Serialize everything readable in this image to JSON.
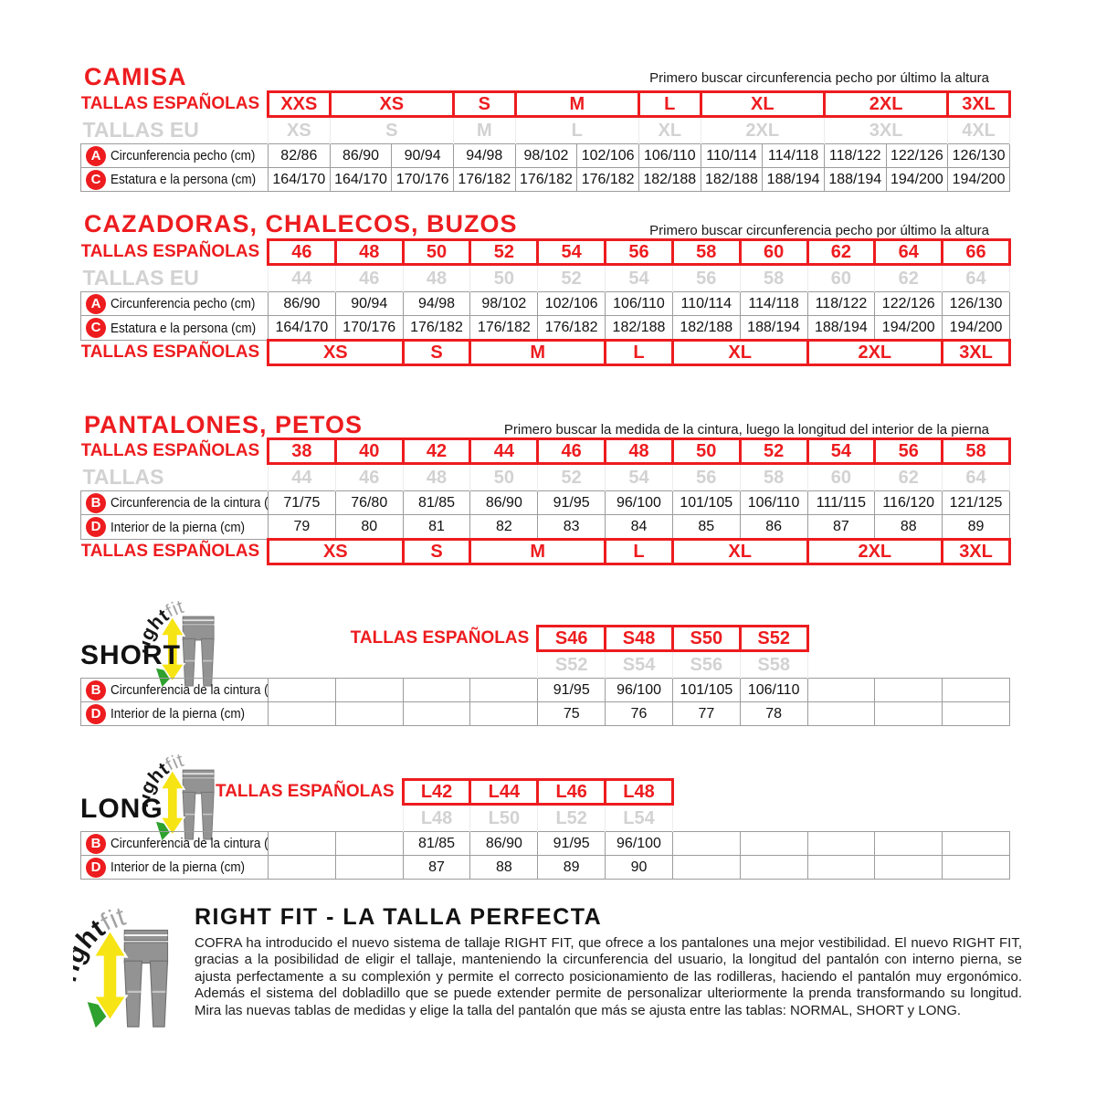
{
  "page": {
    "background": "#ffffff"
  },
  "colors": {
    "accent_red": "#ed1c1f",
    "gray_size_text": "#d2d2d2",
    "table_border_gray": "#9c9c9c",
    "logo_pants_gray": "#939393",
    "logo_arrow_yellow": "#f7e414",
    "logo_arrow_green": "#2ea12e"
  },
  "logo": {
    "right": "right",
    "fit": "fit"
  },
  "tables": {
    "camisa": {
      "title": "CAMISA",
      "note": "Primero buscar circunferencia pecho por último la altura",
      "cols": 12,
      "rows": [
        {
          "type": "red",
          "name": "tallas-espanolas-header",
          "label": "TALLAS ESPAÑOLAS",
          "cells": [
            {
              "t": "XXS"
            },
            {
              "t": "XS",
              "s": 2
            },
            {
              "t": "S"
            },
            {
              "t": "M",
              "s": 2
            },
            {
              "t": "L"
            },
            {
              "t": "XL",
              "s": 2
            },
            {
              "t": "2XL",
              "s": 2
            },
            {
              "t": "3XL"
            }
          ]
        },
        {
          "type": "gray",
          "name": "tallas-eu-header",
          "label": "TALLAS EU",
          "cells": [
            {
              "t": "XS"
            },
            {
              "t": "S",
              "s": 2
            },
            {
              "t": "M"
            },
            {
              "t": "L",
              "s": 2
            },
            {
              "t": "XL"
            },
            {
              "t": "2XL",
              "s": 2
            },
            {
              "t": "3XL",
              "s": 2
            },
            {
              "t": "4XL"
            }
          ]
        },
        {
          "type": "data",
          "name": "row-circunferencia-pecho",
          "badge": "A",
          "label": "Circunferencia pecho (cm)",
          "cells": [
            "82/86",
            "86/90",
            "90/94",
            "94/98",
            "98/102",
            "102/106",
            "106/110",
            "110/114",
            "114/118",
            "118/122",
            "122/126",
            "126/130"
          ]
        },
        {
          "type": "data",
          "name": "row-estatura",
          "badge": "C",
          "label": "Estatura e la persona (cm)",
          "cells": [
            "164/170",
            "164/170",
            "170/176",
            "176/182",
            "176/182",
            "176/182",
            "182/188",
            "182/188",
            "188/194",
            "188/194",
            "194/200",
            "194/200"
          ]
        }
      ]
    },
    "cazadoras": {
      "title": "CAZADORAS, CHALECOS, BUZOS",
      "note": "Primero buscar circunferencia pecho por último la altura",
      "cols": 11,
      "rows": [
        {
          "type": "red",
          "name": "tallas-espanolas-header",
          "label": "TALLAS ESPAÑOLAS",
          "cells": [
            {
              "t": "46"
            },
            {
              "t": "48"
            },
            {
              "t": "50"
            },
            {
              "t": "52"
            },
            {
              "t": "54"
            },
            {
              "t": "56"
            },
            {
              "t": "58"
            },
            {
              "t": "60"
            },
            {
              "t": "62"
            },
            {
              "t": "64"
            },
            {
              "t": "66"
            }
          ]
        },
        {
          "type": "gray",
          "name": "tallas-eu-header",
          "label": "TALLAS EU",
          "cells": [
            {
              "t": "44"
            },
            {
              "t": "46"
            },
            {
              "t": "48"
            },
            {
              "t": "50"
            },
            {
              "t": "52"
            },
            {
              "t": "54"
            },
            {
              "t": "56"
            },
            {
              "t": "58"
            },
            {
              "t": "60"
            },
            {
              "t": "62"
            },
            {
              "t": "64"
            }
          ]
        },
        {
          "type": "data",
          "name": "row-circunferencia-pecho",
          "badge": "A",
          "label": "Circunferencia pecho (cm)",
          "cells": [
            "86/90",
            "90/94",
            "94/98",
            "98/102",
            "102/106",
            "106/110",
            "110/114",
            "114/118",
            "118/122",
            "122/126",
            "126/130"
          ]
        },
        {
          "type": "data",
          "name": "row-estatura",
          "badge": "C",
          "label": "Estatura e la persona (cm)",
          "cells": [
            "164/170",
            "170/176",
            "176/182",
            "176/182",
            "176/182",
            "182/188",
            "182/188",
            "188/194",
            "188/194",
            "194/200",
            "194/200"
          ]
        },
        {
          "type": "red",
          "name": "tallas-espanolas-footer",
          "label": "TALLAS ESPAÑOLAS",
          "cells": [
            {
              "t": "XS",
              "s": 2
            },
            {
              "t": "S"
            },
            {
              "t": "M",
              "s": 2
            },
            {
              "t": "L"
            },
            {
              "t": "XL",
              "s": 2
            },
            {
              "t": "2XL",
              "s": 2
            },
            {
              "t": "3XL"
            }
          ]
        }
      ]
    },
    "pantalones": {
      "title": "PANTALONES, PETOS",
      "note": "Primero buscar la medida de la cintura, luego la longitud del interior de la pierna",
      "cols": 11,
      "rows": [
        {
          "type": "red",
          "name": "tallas-espanolas-header",
          "label": "TALLAS ESPAÑOLAS",
          "cells": [
            {
              "t": "38"
            },
            {
              "t": "40"
            },
            {
              "t": "42"
            },
            {
              "t": "44"
            },
            {
              "t": "46"
            },
            {
              "t": "48"
            },
            {
              "t": "50"
            },
            {
              "t": "52"
            },
            {
              "t": "54"
            },
            {
              "t": "56"
            },
            {
              "t": "58"
            }
          ]
        },
        {
          "type": "gray",
          "name": "tallas-header",
          "label": "TALLAS",
          "cells": [
            {
              "t": "44"
            },
            {
              "t": "46"
            },
            {
              "t": "48"
            },
            {
              "t": "50"
            },
            {
              "t": "52"
            },
            {
              "t": "54"
            },
            {
              "t": "56"
            },
            {
              "t": "58"
            },
            {
              "t": "60"
            },
            {
              "t": "62"
            },
            {
              "t": "64"
            }
          ]
        },
        {
          "type": "data",
          "name": "row-circunferencia-cintura",
          "badge": "B",
          "label": "Circunferencia de la cintura (cm)",
          "cells": [
            "71/75",
            "76/80",
            "81/85",
            "86/90",
            "91/95",
            "96/100",
            "101/105",
            "106/110",
            "111/115",
            "116/120",
            "121/125"
          ]
        },
        {
          "type": "data",
          "name": "row-interior-pierna",
          "badge": "D",
          "label": "Interior de la pierna (cm)",
          "cells": [
            "79",
            "80",
            "81",
            "82",
            "83",
            "84",
            "85",
            "86",
            "87",
            "88",
            "89"
          ]
        },
        {
          "type": "red",
          "name": "tallas-espanolas-footer",
          "label": "TALLAS ESPAÑOLAS",
          "cells": [
            {
              "t": "XS",
              "s": 2
            },
            {
              "t": "S"
            },
            {
              "t": "M",
              "s": 2
            },
            {
              "t": "L"
            },
            {
              "t": "XL",
              "s": 2
            },
            {
              "t": "2XL",
              "s": 2
            },
            {
              "t": "3XL"
            }
          ]
        }
      ]
    },
    "short": {
      "side_label": "SHORT",
      "cols": 11,
      "rows": [
        {
          "type": "red",
          "name": "tallas-espanolas-header",
          "label": "TALLAS ESPAÑOLAS",
          "lead": 4,
          "trail": 3,
          "cells": [
            {
              "t": "S46"
            },
            {
              "t": "S48"
            },
            {
              "t": "S50"
            },
            {
              "t": "S52"
            }
          ]
        },
        {
          "type": "gray",
          "name": "tallas-sub-header",
          "label": "",
          "lead": 4,
          "trail": 3,
          "cells": [
            {
              "t": "S52"
            },
            {
              "t": "S54"
            },
            {
              "t": "S56"
            },
            {
              "t": "S58"
            }
          ]
        },
        {
          "type": "data",
          "name": "row-circunferencia-cintura",
          "badge": "B",
          "label": "Circunferencia de la cintura (cm)",
          "cells": [
            "",
            "",
            "",
            "",
            "91/95",
            "96/100",
            "101/105",
            "106/110",
            "",
            "",
            ""
          ]
        },
        {
          "type": "data",
          "name": "row-interior-pierna",
          "badge": "D",
          "label": "Interior de la pierna (cm)",
          "cells": [
            "",
            "",
            "",
            "",
            "75",
            "76",
            "77",
            "78",
            "",
            "",
            ""
          ]
        }
      ]
    },
    "long": {
      "side_label": "LONG",
      "cols": 11,
      "rows": [
        {
          "type": "red",
          "name": "tallas-espanolas-header",
          "label": "TALLAS ESPAÑOLAS",
          "lead": 2,
          "trail": 5,
          "cells": [
            {
              "t": "L42"
            },
            {
              "t": "L44"
            },
            {
              "t": "L46"
            },
            {
              "t": "L48"
            }
          ]
        },
        {
          "type": "gray",
          "name": "tallas-sub-header",
          "label": "",
          "lead": 2,
          "trail": 5,
          "cells": [
            {
              "t": "L48"
            },
            {
              "t": "L50"
            },
            {
              "t": "L52"
            },
            {
              "t": "L54"
            }
          ]
        },
        {
          "type": "data",
          "name": "row-circunferencia-cintura",
          "badge": "B",
          "label": "Circunferencia de la cintura (cm)",
          "cells": [
            "",
            "",
            "81/85",
            "86/90",
            "91/95",
            "96/100",
            "",
            "",
            "",
            "",
            ""
          ]
        },
        {
          "type": "data",
          "name": "row-interior-pierna",
          "badge": "D",
          "label": "Interior de la pierna (cm)",
          "cells": [
            "",
            "",
            "87",
            "88",
            "89",
            "90",
            "",
            "",
            "",
            "",
            ""
          ]
        }
      ]
    }
  },
  "rightfit": {
    "title": "RIGHT FIT - LA TALLA PERFECTA",
    "paragraph": "COFRA ha introducido el nuevo sistema de tallaje RIGHT FIT, que ofrece a los pantalones una mejor vestibilidad. El nuevo RIGHT FIT, gracias a la posibilidad de eligir el tallaje, manteniendo la circunferencia del usuario, la longitud del pantalón con interno pierna, se ajusta perfectamente a su complexión y permite el correcto posicionamiento de las rodilleras, haciendo el pantalón muy ergonómico. Además el sistema del dobladillo que se puede extender permite de personalizar ulteriormente la prenda transformando su longitud. Mira las nuevas tablas de medidas y elige la talla del pantalón que más se ajusta entre las tablas: NORMAL, SHORT y LONG."
  }
}
